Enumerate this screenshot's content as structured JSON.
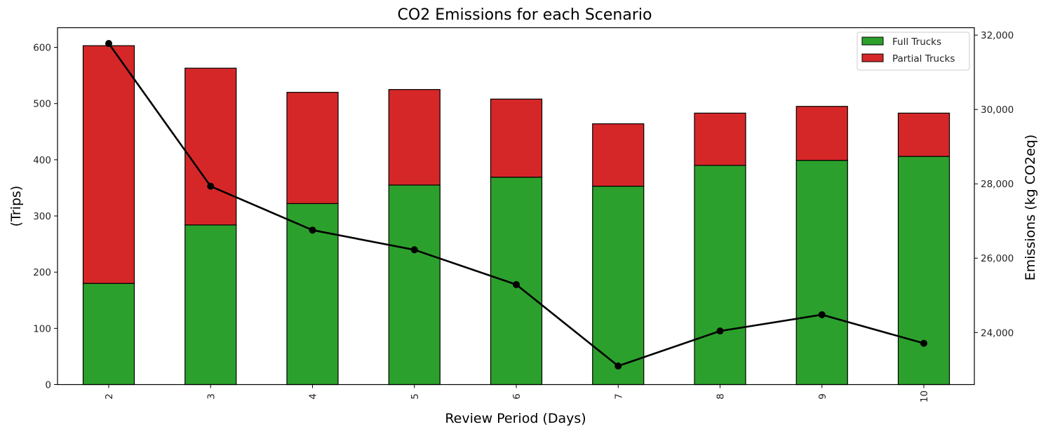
{
  "chart_data": {
    "type": "bar",
    "stacked": true,
    "title": "CO2 Emissions for each Scenario",
    "xlabel": "Review Period (Days)",
    "ylabel": "(Trips)",
    "y2label": "Emissions (kg CO2eq)",
    "categories": [
      "2",
      "3",
      "4",
      "5",
      "6",
      "7",
      "8",
      "9",
      "10"
    ],
    "ylim": [
      0,
      635
    ],
    "yticks": [
      0,
      100,
      200,
      300,
      400,
      500,
      600
    ],
    "y2lim": [
      22600,
      32200
    ],
    "y2ticks": [
      24000,
      26000,
      28000,
      30000,
      32000
    ],
    "y2ticklabels": [
      "24,000",
      "26,000",
      "28,000",
      "30,000",
      "32,000"
    ],
    "series": [
      {
        "name": "Full Trucks",
        "type": "bar",
        "axis": "left",
        "color": "#2ca02c",
        "values": [
          180,
          284,
          322,
          355,
          369,
          353,
          390,
          399,
          406
        ]
      },
      {
        "name": "Partial Trucks",
        "type": "bar",
        "axis": "left",
        "color": "#d62728",
        "values": [
          423,
          279,
          198,
          170,
          139,
          111,
          93,
          96,
          77
        ]
      },
      {
        "name": "Emissions",
        "type": "line",
        "axis": "right",
        "color": "#000000",
        "values": [
          31775,
          27935,
          26755,
          26225,
          25290,
          23100,
          24040,
          24480,
          23710
        ]
      }
    ],
    "legend": {
      "placement": "top-right",
      "entries": [
        "Full Trucks",
        "Partial Trucks"
      ]
    },
    "grid": false
  }
}
